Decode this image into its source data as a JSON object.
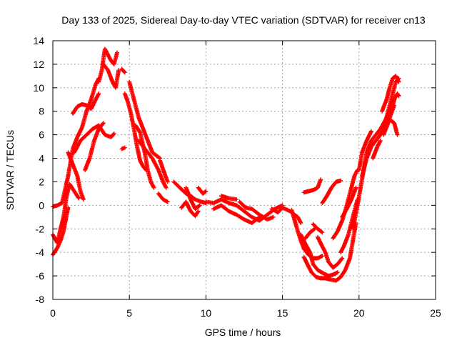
{
  "chart_data": {
    "type": "scatter",
    "title": "Day 133 of 2025, Sidereal Day-to-day VTEC variation (SDTVAR) for receiver cn13",
    "xlabel": "GPS time / hours",
    "ylabel": "SDTVAR / TECUs",
    "xlim": [
      0,
      25
    ],
    "ylim": [
      -8,
      14
    ],
    "xticks": [
      0,
      5,
      10,
      15,
      20,
      25
    ],
    "yticks": [
      -8,
      -6,
      -4,
      -2,
      0,
      2,
      4,
      6,
      8,
      10,
      12,
      14
    ],
    "grid": true,
    "marker": "+",
    "color": "#ff0000",
    "tracks": [
      {
        "name": "track-1",
        "points": [
          [
            0.0,
            -2.5
          ],
          [
            0.3,
            -3.2
          ],
          [
            0.5,
            -2.0
          ],
          [
            0.7,
            -1.0
          ],
          [
            0.9,
            0.8
          ],
          [
            1.1,
            1.8
          ],
          [
            1.4,
            1.2
          ],
          [
            1.7,
            0.6
          ]
        ]
      },
      {
        "name": "track-2",
        "points": [
          [
            0.0,
            -4.2
          ],
          [
            0.3,
            -3.6
          ],
          [
            0.5,
            -3.0
          ],
          [
            0.7,
            -2.2
          ],
          [
            0.8,
            -1.5
          ],
          [
            0.9,
            -0.8
          ],
          [
            1.0,
            -0.2
          ]
        ]
      },
      {
        "name": "track-3",
        "points": [
          [
            0.0,
            -0.1
          ],
          [
            0.3,
            0.0
          ],
          [
            0.6,
            0.2
          ],
          [
            1.0,
            2.5
          ],
          [
            1.3,
            4.8
          ],
          [
            1.6,
            5.8
          ],
          [
            1.9,
            6.6
          ],
          [
            2.2,
            8.0
          ],
          [
            2.5,
            9.0
          ],
          [
            2.8,
            10.3
          ],
          [
            3.0,
            10.8
          ]
        ]
      },
      {
        "name": "track-4",
        "points": [
          [
            1.0,
            4.5
          ],
          [
            1.3,
            3.5
          ],
          [
            1.6,
            2.5
          ],
          [
            1.8,
            1.2
          ],
          [
            2.0,
            0.5
          ]
        ]
      },
      {
        "name": "track-5",
        "points": [
          [
            1.3,
            7.8
          ],
          [
            1.6,
            8.4
          ],
          [
            1.9,
            8.6
          ],
          [
            2.2,
            8.5
          ],
          [
            2.5,
            8.2
          ],
          [
            2.8,
            9.0
          ],
          [
            3.0,
            9.5
          ]
        ]
      },
      {
        "name": "track-6",
        "points": [
          [
            1.4,
            4.5
          ],
          [
            1.8,
            5.5
          ],
          [
            2.2,
            6.0
          ],
          [
            2.6,
            6.5
          ],
          [
            3.0,
            6.8
          ],
          [
            3.4,
            6.0
          ],
          [
            3.8,
            5.8
          ],
          [
            4.0,
            6.1
          ]
        ]
      },
      {
        "name": "track-7",
        "points": [
          [
            2.1,
            3.0
          ],
          [
            2.4,
            4.0
          ],
          [
            2.7,
            5.5
          ],
          [
            3.0,
            6.5
          ],
          [
            3.3,
            7.0
          ]
        ]
      },
      {
        "name": "track-8",
        "points": [
          [
            3.0,
            10.5
          ],
          [
            3.2,
            11.5
          ],
          [
            3.4,
            13.3
          ],
          [
            3.6,
            12.8
          ],
          [
            3.8,
            12.3
          ],
          [
            4.0,
            12.0
          ],
          [
            4.2,
            13.0
          ]
        ]
      },
      {
        "name": "track-9",
        "points": [
          [
            3.3,
            12.0
          ],
          [
            3.6,
            11.5
          ],
          [
            3.9,
            10.5
          ],
          [
            4.1,
            10.0
          ],
          [
            4.3,
            11.5
          ]
        ]
      },
      {
        "name": "track-10",
        "points": [
          [
            4.5,
            11.6
          ],
          [
            4.7,
            11.3
          ]
        ]
      },
      {
        "name": "track-11",
        "points": [
          [
            4.5,
            4.8
          ],
          [
            4.7,
            4.9
          ]
        ]
      },
      {
        "name": "track-12",
        "points": [
          [
            4.7,
            9.5
          ],
          [
            4.9,
            8.8
          ],
          [
            5.1,
            7.8
          ],
          [
            5.3,
            6.5
          ],
          [
            5.5,
            5.0
          ],
          [
            5.7,
            3.8
          ],
          [
            5.9,
            3.3
          ],
          [
            6.1,
            3.0
          ]
        ]
      },
      {
        "name": "track-13",
        "points": [
          [
            5.0,
            10.5
          ],
          [
            5.3,
            9.0
          ],
          [
            5.6,
            7.5
          ],
          [
            5.9,
            6.5
          ],
          [
            6.2,
            5.5
          ],
          [
            6.5,
            4.5
          ],
          [
            6.8,
            4.2
          ],
          [
            7.0,
            4.0
          ]
        ]
      },
      {
        "name": "track-14",
        "points": [
          [
            5.4,
            6.8
          ],
          [
            5.7,
            6.2
          ],
          [
            6.0,
            4.5
          ],
          [
            6.2,
            3.0
          ],
          [
            6.4,
            2.0
          ],
          [
            6.6,
            1.5
          ]
        ]
      },
      {
        "name": "track-15",
        "points": [
          [
            5.6,
            5.5
          ],
          [
            5.9,
            5.0
          ],
          [
            6.2,
            4.5
          ],
          [
            6.5,
            4.0
          ],
          [
            6.9,
            3.0
          ],
          [
            7.2,
            2.0
          ],
          [
            7.4,
            1.5
          ]
        ]
      },
      {
        "name": "track-16",
        "points": [
          [
            7.0,
            3.8
          ],
          [
            7.3,
            2.7
          ],
          [
            7.5,
            2.0
          ]
        ]
      },
      {
        "name": "track-17",
        "points": [
          [
            6.9,
            1.0
          ],
          [
            7.2,
            0.5
          ],
          [
            7.5,
            0.3
          ]
        ]
      },
      {
        "name": "track-18",
        "points": [
          [
            7.9,
            2.0
          ],
          [
            8.3,
            1.5
          ],
          [
            8.7,
            1.0
          ],
          [
            9.0,
            0.8
          ],
          [
            9.3,
            0.5
          ],
          [
            9.7,
            0.3
          ],
          [
            10.0,
            0.2
          ]
        ]
      },
      {
        "name": "track-19",
        "points": [
          [
            8.4,
            -0.2
          ],
          [
            8.7,
            0.3
          ],
          [
            9.0,
            -0.5
          ],
          [
            9.3,
            -0.9
          ],
          [
            9.5,
            -0.5
          ]
        ]
      },
      {
        "name": "track-20",
        "points": [
          [
            8.7,
            1.5
          ],
          [
            9.0,
            0.5
          ],
          [
            9.3,
            -0.3
          ],
          [
            9.6,
            0.0
          ]
        ]
      },
      {
        "name": "track-21",
        "points": [
          [
            9.5,
            1.5
          ],
          [
            9.8,
            1.0
          ],
          [
            10.0,
            1.2
          ]
        ]
      },
      {
        "name": "track-22",
        "points": [
          [
            10.0,
            0.3
          ],
          [
            10.5,
            0.2
          ],
          [
            11.0,
            0.5
          ],
          [
            11.5,
            0.2
          ],
          [
            12.0,
            0.0
          ],
          [
            12.5,
            -0.5
          ],
          [
            13.0,
            -1.0
          ],
          [
            13.5,
            -1.3
          ],
          [
            14.0,
            -0.8
          ],
          [
            14.5,
            -0.3
          ],
          [
            15.0,
            0.0
          ]
        ]
      },
      {
        "name": "track-23",
        "points": [
          [
            10.5,
            -0.3
          ],
          [
            11.0,
            0.0
          ],
          [
            11.5,
            -0.5
          ],
          [
            12.0,
            -0.8
          ],
          [
            12.5,
            -1.2
          ],
          [
            13.0,
            -1.5
          ],
          [
            13.5,
            -1.0
          ]
        ]
      },
      {
        "name": "track-24",
        "points": [
          [
            11.0,
            0.8
          ],
          [
            11.5,
            0.6
          ],
          [
            12.0,
            0.5
          ]
        ]
      },
      {
        "name": "track-25",
        "points": [
          [
            12.2,
            0.3
          ],
          [
            12.6,
            -0.2
          ],
          [
            13.0,
            -0.3
          ],
          [
            13.5,
            -0.8
          ],
          [
            14.0,
            -1.2
          ],
          [
            14.4,
            -1.0
          ]
        ]
      },
      {
        "name": "track-26",
        "points": [
          [
            14.3,
            -0.3
          ],
          [
            14.7,
            -0.6
          ],
          [
            15.0,
            -0.2
          ],
          [
            15.5,
            -0.5
          ],
          [
            16.0,
            -1.0
          ],
          [
            16.2,
            -1.5
          ]
        ]
      },
      {
        "name": "track-27",
        "points": [
          [
            15.6,
            -0.4
          ],
          [
            15.8,
            -1.3
          ],
          [
            16.0,
            -2.2
          ],
          [
            16.2,
            -3.0
          ],
          [
            16.4,
            -3.7
          ],
          [
            16.7,
            -4.2
          ],
          [
            17.0,
            -4.5
          ],
          [
            17.3,
            -4.5
          ],
          [
            17.6,
            -4.3
          ]
        ]
      },
      {
        "name": "track-28",
        "points": [
          [
            16.2,
            -2.5
          ],
          [
            16.5,
            -3.3
          ],
          [
            16.8,
            -4.0
          ],
          [
            17.0,
            -5.0
          ],
          [
            17.3,
            -5.5
          ],
          [
            17.7,
            -5.8
          ],
          [
            18.0,
            -6.0
          ],
          [
            18.3,
            -5.9
          ],
          [
            18.6,
            -5.7
          ]
        ]
      },
      {
        "name": "track-29",
        "points": [
          [
            16.4,
            -4.4
          ],
          [
            16.7,
            -5.2
          ],
          [
            16.9,
            -5.7
          ],
          [
            17.2,
            -6.1
          ],
          [
            17.5,
            -6.2
          ],
          [
            17.8,
            -6.2
          ],
          [
            18.1,
            -6.3
          ],
          [
            18.5,
            -6.4
          ],
          [
            18.8,
            -6.1
          ],
          [
            19.1,
            -5.5
          ],
          [
            19.4,
            -4.5
          ],
          [
            19.6,
            -3.0
          ],
          [
            19.8,
            -1.5
          ]
        ]
      },
      {
        "name": "track-30",
        "points": [
          [
            17.0,
            -1.6
          ],
          [
            17.3,
            -2.0
          ],
          [
            17.6,
            -2.3
          ]
        ]
      },
      {
        "name": "track-31",
        "points": [
          [
            17.3,
            -2.7
          ],
          [
            17.6,
            -3.5
          ],
          [
            17.8,
            -4.0
          ],
          [
            18.0,
            -4.8
          ],
          [
            18.3,
            -5.3
          ],
          [
            18.6,
            -5.0
          ],
          [
            18.9,
            -4.5
          ]
        ]
      },
      {
        "name": "track-32",
        "points": [
          [
            16.5,
            -2.8
          ],
          [
            16.8,
            -2.3
          ],
          [
            17.1,
            -2.0
          ]
        ]
      },
      {
        "name": "track-33",
        "points": [
          [
            16.4,
            1.1
          ],
          [
            16.7,
            1.2
          ],
          [
            17.0,
            1.3
          ],
          [
            17.3,
            1.5
          ],
          [
            17.5,
            2.2
          ]
        ]
      },
      {
        "name": "track-34",
        "points": [
          [
            17.6,
            0.2
          ],
          [
            17.9,
            0.8
          ],
          [
            18.2,
            1.5
          ],
          [
            18.5,
            2.0
          ],
          [
            18.8,
            2.1
          ]
        ]
      },
      {
        "name": "track-35",
        "points": [
          [
            18.3,
            -2.8
          ],
          [
            18.6,
            -2.2
          ],
          [
            18.9,
            -1.3
          ],
          [
            19.2,
            0.0
          ],
          [
            19.5,
            1.5
          ],
          [
            19.7,
            2.5
          ],
          [
            19.9,
            3.0
          ]
        ]
      },
      {
        "name": "track-36",
        "points": [
          [
            18.8,
            -4.0
          ],
          [
            19.0,
            -3.5
          ],
          [
            19.3,
            -2.5
          ],
          [
            19.6,
            -1.0
          ],
          [
            19.9,
            0.5
          ]
        ]
      },
      {
        "name": "track-37",
        "points": [
          [
            18.9,
            -1.0
          ],
          [
            19.2,
            -0.3
          ],
          [
            19.5,
            0.5
          ],
          [
            19.8,
            1.5
          ]
        ]
      },
      {
        "name": "track-38",
        "points": [
          [
            19.6,
            -2.0
          ],
          [
            19.9,
            0.0
          ],
          [
            20.1,
            1.5
          ],
          [
            20.3,
            3.0
          ],
          [
            20.5,
            4.5
          ],
          [
            20.8,
            5.5
          ],
          [
            21.1,
            6.0
          ],
          [
            21.4,
            6.5
          ],
          [
            21.7,
            7.2
          ],
          [
            22.0,
            8.0
          ],
          [
            22.3,
            9.0
          ]
        ]
      },
      {
        "name": "track-39",
        "points": [
          [
            20.2,
            2.5
          ],
          [
            20.5,
            4.0
          ],
          [
            20.8,
            5.0
          ],
          [
            21.1,
            5.5
          ],
          [
            21.4,
            6.0
          ],
          [
            21.7,
            7.0
          ],
          [
            22.0,
            8.5
          ],
          [
            22.2,
            9.5
          ],
          [
            22.4,
            10.5
          ],
          [
            22.6,
            10.8
          ]
        ]
      },
      {
        "name": "track-40",
        "points": [
          [
            20.0,
            3.0
          ],
          [
            20.2,
            4.5
          ],
          [
            20.5,
            5.5
          ],
          [
            20.8,
            6.3
          ]
        ]
      },
      {
        "name": "track-41",
        "points": [
          [
            21.5,
            8.0
          ],
          [
            21.8,
            9.0
          ],
          [
            22.0,
            10.0
          ],
          [
            22.2,
            10.8
          ],
          [
            22.4,
            11.0
          ],
          [
            22.6,
            10.5
          ]
        ]
      },
      {
        "name": "track-42",
        "points": [
          [
            21.6,
            6.5
          ],
          [
            21.9,
            7.5
          ],
          [
            22.1,
            8.0
          ],
          [
            22.3,
            9.0
          ],
          [
            22.5,
            9.5
          ],
          [
            22.6,
            9.3
          ]
        ]
      },
      {
        "name": "track-43",
        "points": [
          [
            21.6,
            6.0
          ],
          [
            21.9,
            7.0
          ],
          [
            22.1,
            7.8
          ],
          [
            22.3,
            8.5
          ]
        ]
      },
      {
        "name": "track-44",
        "points": [
          [
            22.1,
            7.2
          ],
          [
            22.3,
            7.0
          ],
          [
            22.5,
            6.0
          ]
        ]
      },
      {
        "name": "track-45",
        "points": [
          [
            20.9,
            4.0
          ],
          [
            21.2,
            5.0
          ],
          [
            21.4,
            5.5
          ]
        ]
      }
    ]
  }
}
